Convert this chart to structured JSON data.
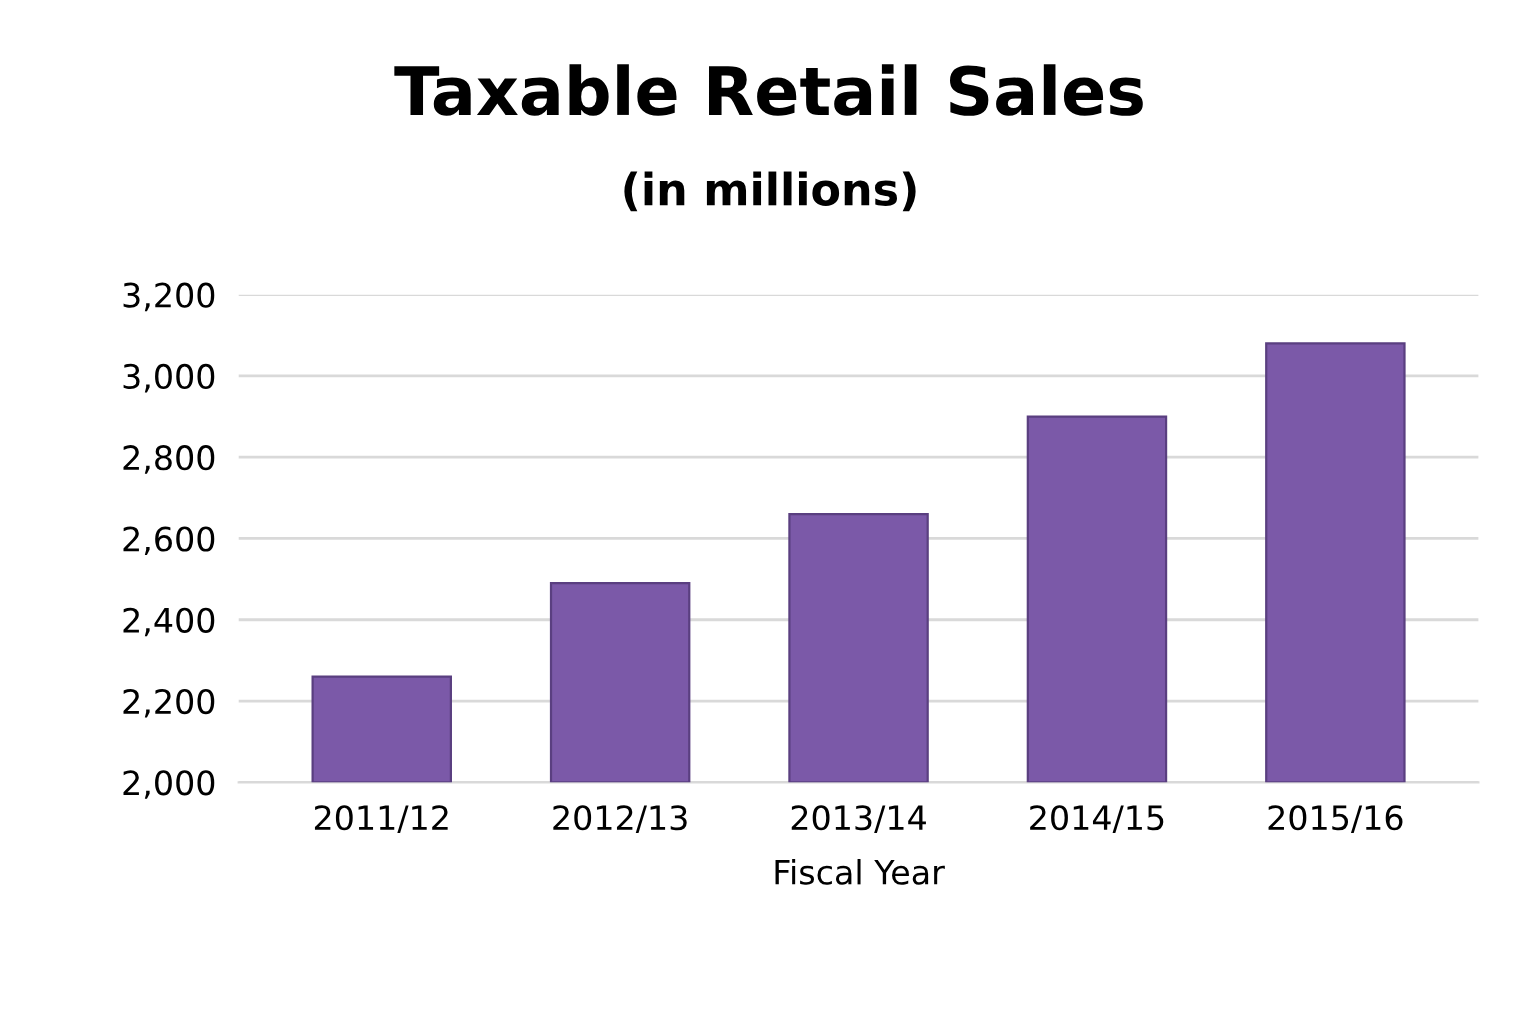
{
  "chart_data": {
    "type": "bar",
    "title": "Taxable Retail Sales",
    "subtitle": "(in millions)",
    "xlabel": "Fiscal Year",
    "categories": [
      "2011/12",
      "2012/13",
      "2013/14",
      "2014/15",
      "2015/16"
    ],
    "values": [
      2260,
      2490,
      2660,
      2900,
      3080
    ],
    "color": "#7b59a8",
    "ylim": [
      2000,
      3200
    ],
    "yticks": [
      {
        "value": 2000,
        "label": "2,000"
      },
      {
        "value": 2200,
        "label": "2,200"
      },
      {
        "value": 2400,
        "label": "2,400"
      },
      {
        "value": 2600,
        "label": "2,600"
      },
      {
        "value": 2800,
        "label": "2,800"
      },
      {
        "value": 3000,
        "label": "3,000"
      },
      {
        "value": 3200,
        "label": "3,200"
      }
    ],
    "grid": "y"
  }
}
